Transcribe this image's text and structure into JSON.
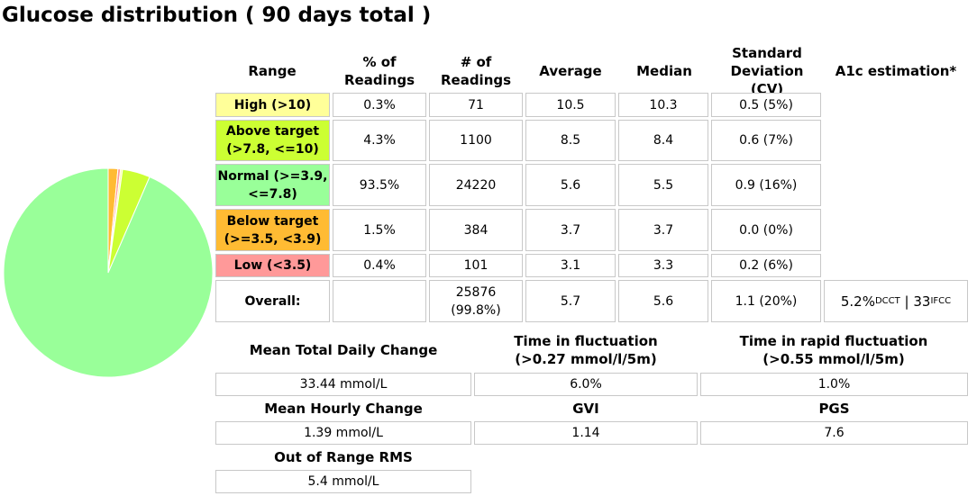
{
  "title": "Glucose distribution ( 90 days total )",
  "colors": {
    "high": "#ffff99",
    "above": "#ccff33",
    "normal": "#99ff99",
    "below": "#ffbb33",
    "low": "#ff9999"
  },
  "table": {
    "headers": {
      "range": "Range",
      "pct": "% of Readings",
      "count": "# of Readings",
      "avg": "Average",
      "median": "Median",
      "sd": "Standard Deviation (CV)",
      "a1c": "A1c estimation*"
    },
    "rows": [
      {
        "label": "High (>10)",
        "pct": "0.3%",
        "count": "71",
        "avg": "10.5",
        "median": "10.3",
        "sd": "0.5 (5%)"
      },
      {
        "label": "Above target (>7.8, <=10)",
        "pct": "4.3%",
        "count": "1100",
        "avg": "8.5",
        "median": "8.4",
        "sd": "0.6 (7%)"
      },
      {
        "label": "Normal (>=3.9, <=7.8)",
        "pct": "93.5%",
        "count": "24220",
        "avg": "5.6",
        "median": "5.5",
        "sd": "0.9 (16%)"
      },
      {
        "label": "Below target (>=3.5, <3.9)",
        "pct": "1.5%",
        "count": "384",
        "avg": "3.7",
        "median": "3.7",
        "sd": "0.0 (0%)"
      },
      {
        "label": "Low (<3.5)",
        "pct": "0.4%",
        "count": "101",
        "avg": "3.1",
        "median": "3.3",
        "sd": "0.2 (6%)"
      }
    ],
    "overall": {
      "label": "Overall:",
      "count": "25876 (99.8%)",
      "avg": "5.7",
      "median": "5.6",
      "sd": "1.1 (20%)",
      "a1c_dcct": "5.2%",
      "a1c_dcct_sub": "DCCT",
      "a1c_sep": " | ",
      "a1c_ifcc": "33",
      "a1c_ifcc_sub": "IFCC"
    }
  },
  "stats": {
    "mean_total_daily_change_label": "Mean Total Daily Change",
    "mean_total_daily_change_value": "33.44 mmol/L",
    "time_in_fluctuation_label": "Time in fluctuation (>0.27 mmol/l/5m)",
    "time_in_fluctuation_value": "6.0%",
    "time_in_rapid_fluctuation_label": "Time in rapid fluctuation (>0.55 mmol/l/5m)",
    "time_in_rapid_fluctuation_value": "1.0%",
    "mean_hourly_change_label": "Mean Hourly Change",
    "mean_hourly_change_value": "1.39 mmol/L",
    "gvi_label": "GVI",
    "gvi_value": "1.14",
    "pgs_label": "PGS",
    "pgs_value": "7.6",
    "out_of_range_rms_label": "Out of Range RMS",
    "out_of_range_rms_value": "5.4 mmol/L"
  },
  "pie": {
    "slices": [
      {
        "key": "normal",
        "value": 93.5
      },
      {
        "key": "above",
        "value": 4.3
      },
      {
        "key": "high",
        "value": 0.3
      },
      {
        "key": "low",
        "value": 0.4
      },
      {
        "key": "below",
        "value": 1.5
      }
    ]
  }
}
